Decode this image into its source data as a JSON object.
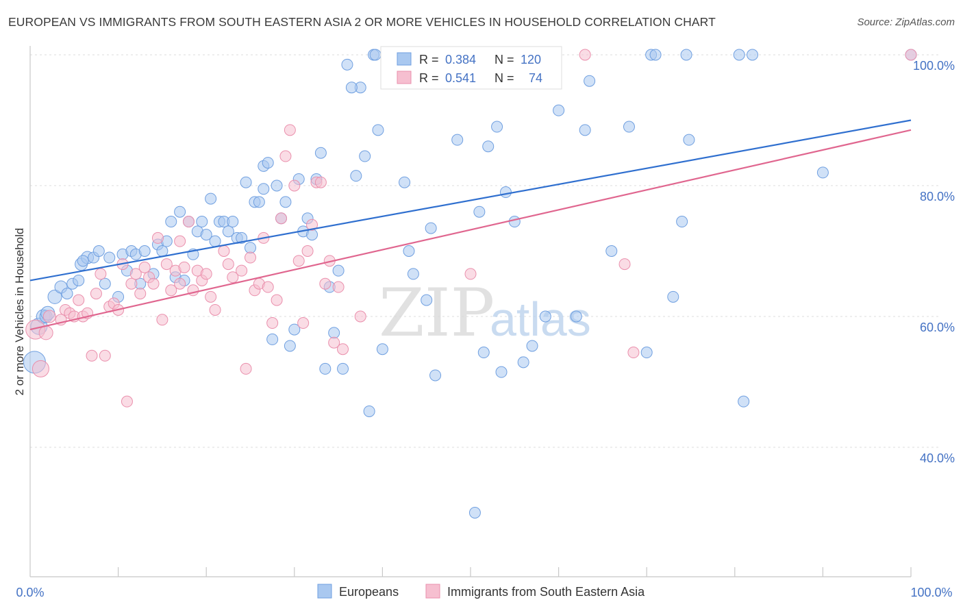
{
  "title": "EUROPEAN VS IMMIGRANTS FROM SOUTH EASTERN ASIA 2 OR MORE VEHICLES IN HOUSEHOLD CORRELATION CHART",
  "source": "Source: ZipAtlas.com",
  "watermark": {
    "zip": "ZIP",
    "atlas": "atlas"
  },
  "legend_box": [
    {
      "r_label": "R =",
      "r_value": "0.384",
      "n_label": "N =",
      "n_value": "120"
    },
    {
      "r_label": "R =",
      "r_value": "0.541",
      "n_label": "N =",
      "n_value": "74"
    }
  ],
  "colors": {
    "blue_fill": "#a9c8f0",
    "blue_stroke": "#6f9fe0",
    "blue_line": "#2f6fcf",
    "pink_fill": "#f6bfd0",
    "pink_stroke": "#ea8fac",
    "pink_line": "#e0668f",
    "axis_text": "#4472c4",
    "grid": "#dddddd"
  },
  "chart_data": {
    "type": "scatter",
    "xlabel": "",
    "ylabel": "2 or more Vehicles in Household",
    "xlim": [
      0,
      100
    ],
    "ylim": [
      22,
      102
    ],
    "x_tick_labels": [
      "0.0%",
      "100.0%"
    ],
    "y_ticks": [
      40,
      60,
      80,
      100
    ],
    "y_tick_labels": [
      "40.0%",
      "60.0%",
      "80.0%",
      "100.0%"
    ],
    "grid": true,
    "legend_position": "bottom",
    "series": [
      {
        "name": "Europeans",
        "color": "#a9c8f0",
        "R": 0.384,
        "N": 120,
        "trend": {
          "x": [
            0,
            100
          ],
          "y": [
            65.5,
            90.0
          ]
        },
        "points": [
          [
            0.5,
            53,
            16
          ],
          [
            1.0,
            58.5,
            12
          ],
          [
            1.5,
            60,
            10
          ],
          [
            1.8,
            60,
            9
          ],
          [
            2.0,
            60.5,
            10
          ],
          [
            2.8,
            63,
            10
          ],
          [
            3.5,
            64.5,
            9
          ],
          [
            4.2,
            63.5,
            8
          ],
          [
            4.8,
            65,
            8
          ],
          [
            5.5,
            65.5,
            8
          ],
          [
            5.8,
            68,
            9
          ],
          [
            6.5,
            69,
            9
          ],
          [
            7.2,
            69,
            8
          ],
          [
            7.8,
            70,
            8
          ],
          [
            8.5,
            65,
            8
          ],
          [
            9.0,
            69,
            8
          ],
          [
            10.0,
            63,
            8
          ],
          [
            10.5,
            69.5,
            8
          ],
          [
            11.0,
            67,
            8
          ],
          [
            11.5,
            70,
            8
          ],
          [
            12.0,
            69.5,
            8
          ],
          [
            12.5,
            65,
            8
          ],
          [
            13.0,
            70,
            8
          ],
          [
            14.0,
            66.5,
            8
          ],
          [
            14.5,
            71,
            8
          ],
          [
            15.0,
            70,
            8
          ],
          [
            15.5,
            71.5,
            8
          ],
          [
            16.0,
            74.5,
            8
          ],
          [
            16.5,
            66,
            8
          ],
          [
            17.0,
            76,
            8
          ],
          [
            17.5,
            65.5,
            8
          ],
          [
            18.0,
            74.5,
            8
          ],
          [
            18.5,
            69.5,
            8
          ],
          [
            19.0,
            73,
            8
          ],
          [
            19.5,
            74.5,
            8
          ],
          [
            20.0,
            72.5,
            8
          ],
          [
            20.5,
            78,
            8
          ],
          [
            21.0,
            71.5,
            8
          ],
          [
            21.5,
            74.5,
            8
          ],
          [
            22.0,
            74.5,
            8
          ],
          [
            22.5,
            73,
            8
          ],
          [
            23.0,
            74.5,
            8
          ],
          [
            23.5,
            72,
            8
          ],
          [
            24.0,
            72,
            8
          ],
          [
            24.5,
            80.5,
            8
          ],
          [
            25.0,
            70.5,
            8
          ],
          [
            25.5,
            77.5,
            8
          ],
          [
            26.0,
            77.5,
            8
          ],
          [
            26.5,
            83,
            8
          ],
          [
            27.0,
            83.5,
            8
          ],
          [
            27.5,
            56.5,
            8
          ],
          [
            28.0,
            80,
            8
          ],
          [
            28.5,
            75,
            8
          ],
          [
            29.0,
            77.5,
            8
          ],
          [
            29.5,
            55.5,
            8
          ],
          [
            30.0,
            58,
            8
          ],
          [
            30.5,
            81,
            8
          ],
          [
            31.0,
            73,
            8
          ],
          [
            31.5,
            75,
            8
          ],
          [
            32.0,
            72.5,
            8
          ],
          [
            32.5,
            81,
            8
          ],
          [
            33.0,
            85,
            8
          ],
          [
            33.5,
            52,
            8
          ],
          [
            34.0,
            64.5,
            8
          ],
          [
            34.5,
            57.5,
            8
          ],
          [
            35.0,
            67,
            8
          ],
          [
            35.5,
            52,
            8
          ],
          [
            36.0,
            98.5,
            8
          ],
          [
            37.0,
            81.5,
            8
          ],
          [
            37.5,
            95,
            8
          ],
          [
            38.0,
            84.5,
            8
          ],
          [
            38.5,
            45.5,
            8
          ],
          [
            39.0,
            100,
            8
          ],
          [
            39.5,
            88.5,
            8
          ],
          [
            40.0,
            55,
            8
          ],
          [
            42.0,
            100,
            8
          ],
          [
            42.5,
            80.5,
            8
          ],
          [
            43.0,
            70,
            8
          ],
          [
            43.5,
            66.5,
            8
          ],
          [
            44.0,
            97.5,
            8
          ],
          [
            45.0,
            62.5,
            8
          ],
          [
            45.5,
            73.5,
            8
          ],
          [
            46.0,
            51,
            8
          ],
          [
            47.0,
            100,
            8
          ],
          [
            48.0,
            97,
            8
          ],
          [
            48.5,
            87,
            8
          ],
          [
            50.0,
            96,
            8
          ],
          [
            50.5,
            30,
            8
          ],
          [
            51.0,
            76,
            8
          ],
          [
            51.5,
            54.5,
            8
          ],
          [
            52.0,
            86,
            8
          ],
          [
            53.0,
            89,
            8
          ],
          [
            53.5,
            51.5,
            8
          ],
          [
            54.0,
            79,
            8
          ],
          [
            55.0,
            74.5,
            8
          ],
          [
            56.0,
            53,
            8
          ],
          [
            57.0,
            55.5,
            8
          ],
          [
            58.5,
            60,
            8
          ],
          [
            60.0,
            91.5,
            8
          ],
          [
            62.0,
            60,
            8
          ],
          [
            63.0,
            88.5,
            8
          ],
          [
            63.5,
            96,
            8
          ],
          [
            66.0,
            70,
            8
          ],
          [
            68.0,
            89,
            8
          ],
          [
            70.0,
            54.5,
            8
          ],
          [
            70.5,
            100,
            8
          ],
          [
            71.0,
            100,
            8
          ],
          [
            73.0,
            63,
            8
          ],
          [
            74.0,
            74.5,
            8
          ],
          [
            74.5,
            100,
            8
          ],
          [
            74.8,
            87,
            8
          ],
          [
            80.5,
            100,
            8
          ],
          [
            82.0,
            100,
            8
          ],
          [
            81.0,
            47,
            8
          ],
          [
            90.0,
            82,
            8
          ],
          [
            100.0,
            100,
            8
          ],
          [
            6.0,
            68.5,
            8
          ],
          [
            26.5,
            79.5,
            8
          ],
          [
            36.5,
            95,
            8
          ],
          [
            39.2,
            100,
            8
          ]
        ]
      },
      {
        "name": "Immigrants from South Eastern Asia",
        "color": "#f6bfd0",
        "R": 0.541,
        "N": 74,
        "trend": {
          "x": [
            0,
            100
          ],
          "y": [
            58.0,
            88.5
          ]
        },
        "points": [
          [
            0.6,
            58,
            14
          ],
          [
            1.2,
            52,
            12
          ],
          [
            1.8,
            57.5,
            10
          ],
          [
            2.2,
            60,
            9
          ],
          [
            3.5,
            59.5,
            8
          ],
          [
            4.0,
            61,
            8
          ],
          [
            4.5,
            60.5,
            8
          ],
          [
            5.0,
            60,
            8
          ],
          [
            5.5,
            62.5,
            8
          ],
          [
            6.0,
            60,
            8
          ],
          [
            6.5,
            60.5,
            8
          ],
          [
            7.0,
            54,
            8
          ],
          [
            7.5,
            63.5,
            8
          ],
          [
            8.0,
            66.5,
            8
          ],
          [
            8.5,
            54,
            8
          ],
          [
            9.0,
            61.5,
            8
          ],
          [
            9.5,
            62,
            8
          ],
          [
            10.0,
            61,
            8
          ],
          [
            10.5,
            68,
            8
          ],
          [
            11.0,
            47,
            8
          ],
          [
            11.5,
            65,
            8
          ],
          [
            12.0,
            66.5,
            8
          ],
          [
            12.5,
            63.5,
            8
          ],
          [
            13.0,
            67.5,
            8
          ],
          [
            13.5,
            66,
            8
          ],
          [
            14.0,
            65,
            8
          ],
          [
            14.5,
            72,
            8
          ],
          [
            15.0,
            59.5,
            8
          ],
          [
            15.5,
            68,
            8
          ],
          [
            16.0,
            64,
            8
          ],
          [
            16.5,
            67,
            8
          ],
          [
            17.0,
            65,
            8
          ],
          [
            17.5,
            67.5,
            8
          ],
          [
            18.0,
            74.5,
            8
          ],
          [
            18.5,
            64,
            8
          ],
          [
            19.0,
            67,
            8
          ],
          [
            19.5,
            65.5,
            8
          ],
          [
            20.0,
            66.5,
            8
          ],
          [
            20.5,
            63,
            8
          ],
          [
            21.0,
            61,
            8
          ],
          [
            22.0,
            70,
            8
          ],
          [
            22.5,
            68,
            8
          ],
          [
            23.0,
            66,
            8
          ],
          [
            24.0,
            67,
            8
          ],
          [
            24.5,
            52,
            8
          ],
          [
            25.0,
            69,
            8
          ],
          [
            25.5,
            64,
            8
          ],
          [
            26.0,
            65,
            8
          ],
          [
            26.5,
            72,
            8
          ],
          [
            27.0,
            64.5,
            8
          ],
          [
            27.5,
            59,
            8
          ],
          [
            28.0,
            62.5,
            8
          ],
          [
            28.5,
            75,
            8
          ],
          [
            29.0,
            84.5,
            8
          ],
          [
            29.5,
            88.5,
            8
          ],
          [
            30.0,
            80,
            8
          ],
          [
            30.5,
            68.5,
            8
          ],
          [
            31.0,
            59,
            8
          ],
          [
            31.5,
            70,
            8
          ],
          [
            32.0,
            74,
            8
          ],
          [
            32.5,
            80.5,
            8
          ],
          [
            33.5,
            65,
            8
          ],
          [
            34.0,
            68.5,
            8
          ],
          [
            34.5,
            56,
            8
          ],
          [
            35.0,
            64.5,
            8
          ],
          [
            35.5,
            55,
            8
          ],
          [
            37.5,
            60,
            8
          ],
          [
            50.0,
            66.5,
            8
          ],
          [
            63.0,
            100,
            8
          ],
          [
            67.5,
            68,
            8
          ],
          [
            68.5,
            54.5,
            8
          ],
          [
            100.0,
            100,
            8
          ],
          [
            33.0,
            80.5,
            8
          ],
          [
            17.0,
            71.5,
            8
          ]
        ]
      }
    ]
  }
}
